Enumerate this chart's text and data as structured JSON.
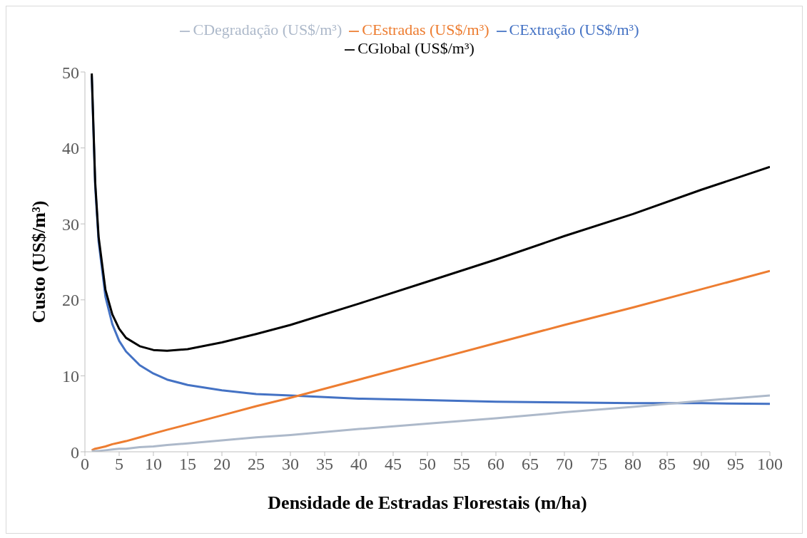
{
  "chart_data": {
    "type": "line",
    "xlabel": "Densidade de Estradas Florestais (m/ha)",
    "ylabel": "Custo (US$/m³)",
    "x": [
      1,
      1.5,
      2,
      3,
      4,
      5,
      6,
      8,
      10,
      12,
      15,
      20,
      25,
      30,
      40,
      50,
      60,
      70,
      80,
      90,
      100
    ],
    "series": [
      {
        "name": "CExtração (US$/m³)",
        "color": "#4472c4",
        "values": [
          49.5,
          35.0,
          27.7,
          20.4,
          16.8,
          14.6,
          13.2,
          11.4,
          10.3,
          9.5,
          8.8,
          8.1,
          7.6,
          7.4,
          7.0,
          6.8,
          6.6,
          6.5,
          6.4,
          6.4,
          6.3
        ]
      },
      {
        "name": "CEstradas (US$/m³)",
        "color": "#ed7d31",
        "values": [
          0.2,
          0.4,
          0.5,
          0.7,
          1.0,
          1.2,
          1.4,
          1.9,
          2.4,
          2.9,
          3.6,
          4.8,
          6.0,
          7.1,
          9.5,
          11.9,
          14.3,
          16.7,
          19.0,
          21.4,
          23.8
        ]
      },
      {
        "name": "CDegradação (US$/m³)",
        "color": "#adb9ca",
        "values": [
          0.1,
          0.1,
          0.1,
          0.2,
          0.3,
          0.4,
          0.4,
          0.6,
          0.7,
          0.9,
          1.1,
          1.5,
          1.9,
          2.2,
          3.0,
          3.7,
          4.4,
          5.2,
          5.9,
          6.7,
          7.4
        ]
      },
      {
        "name": "CGlobal (US$/m³)",
        "color": "#000000",
        "values": [
          49.8,
          35.5,
          28.3,
          21.3,
          18.1,
          16.2,
          15.0,
          13.9,
          13.4,
          13.3,
          13.5,
          14.4,
          15.5,
          16.7,
          19.5,
          22.4,
          25.3,
          28.4,
          31.3,
          34.5,
          37.5
        ]
      }
    ],
    "xlim": [
      0,
      100
    ],
    "xticks": [
      0,
      5,
      10,
      15,
      20,
      25,
      30,
      35,
      40,
      45,
      50,
      55,
      60,
      65,
      70,
      75,
      80,
      85,
      90,
      95,
      100
    ],
    "ylim": [
      0,
      50
    ],
    "yticks": [
      0,
      10,
      20,
      30,
      40,
      50
    ],
    "grid": false,
    "legend": "top",
    "marker": "none",
    "line_style": "solid"
  }
}
